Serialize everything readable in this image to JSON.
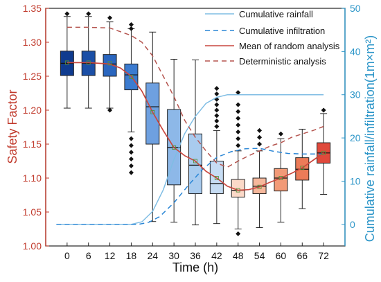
{
  "chart_data": {
    "type": "box",
    "x_label": "Time (h)",
    "y_left_label": "Safety Factor",
    "y_right_label": "Cumulative rainfall/infiltration(1m×m²)",
    "x_ticks": [
      "0",
      "6",
      "12",
      "18",
      "24",
      "30",
      "36",
      "42",
      "48",
      "54",
      "60",
      "66",
      "72"
    ],
    "y_left_ticks": [
      "1.00",
      "1.05",
      "1.10",
      "1.15",
      "1.20",
      "1.25",
      "1.30",
      "1.35"
    ],
    "y_right_ticks": [
      "0",
      "10",
      "20",
      "30",
      "40",
      "50"
    ],
    "y_left_range": [
      1.0,
      1.35
    ],
    "y_right_range": [
      -5,
      50
    ],
    "legend": {
      "rainfall": "Cumulative rainfall",
      "infiltration": "Cumulative infiltration",
      "mean": "Mean of random analysis",
      "deterministic": "Deterministic analysis"
    },
    "colors": {
      "left_axis": "#c0392b",
      "right_axis": "#2b95c8",
      "mean_line": "#c9473e",
      "deterministic_line": "#b5554f",
      "rainfall_line": "#7fbde4",
      "infiltration_line": "#2a86d6"
    },
    "boxes": [
      {
        "x": 0,
        "whisker_low": 1.203,
        "q1": 1.251,
        "median": 1.269,
        "q3": 1.287,
        "whisker_high": 1.338,
        "mean": 1.27,
        "outliers": [
          1.342
        ],
        "color": "#0f3b8f"
      },
      {
        "x": 6,
        "whisker_low": 1.203,
        "q1": 1.251,
        "median": 1.269,
        "q3": 1.287,
        "whisker_high": 1.338,
        "mean": 1.27,
        "outliers": [
          1.342
        ],
        "color": "#1b4fa6"
      },
      {
        "x": 12,
        "whisker_low": 1.203,
        "q1": 1.25,
        "median": 1.268,
        "q3": 1.282,
        "whisker_high": 1.33,
        "mean": 1.269,
        "outliers": [
          1.2,
          1.336
        ],
        "color": "#2a66bf"
      },
      {
        "x": 18,
        "whisker_low": 1.168,
        "q1": 1.23,
        "median": 1.252,
        "q3": 1.268,
        "whisker_high": 1.32,
        "mean": 1.249,
        "outliers": [
          1.108,
          1.118,
          1.128,
          1.138,
          1.148,
          1.158,
          1.326,
          1.32
        ],
        "color": "#3b7bd0"
      },
      {
        "x": 24,
        "whisker_low": 1.036,
        "q1": 1.15,
        "median": 1.205,
        "q3": 1.24,
        "whisker_high": 1.315,
        "mean": 1.197,
        "outliers": [],
        "color": "#6ea0e0"
      },
      {
        "x": 30,
        "whisker_low": 1.035,
        "q1": 1.09,
        "median": 1.145,
        "q3": 1.201,
        "whisker_high": 1.275,
        "mean": 1.145,
        "outliers": [],
        "color": "#8db8e8"
      },
      {
        "x": 36,
        "whisker_low": 1.031,
        "q1": 1.077,
        "median": 1.119,
        "q3": 1.165,
        "whisker_high": 1.274,
        "mean": 1.125,
        "outliers": [],
        "color": "#a9cbee"
      },
      {
        "x": 42,
        "whisker_low": 1.033,
        "q1": 1.077,
        "median": 1.092,
        "q3": 1.125,
        "whisker_high": 1.17,
        "mean": 1.1,
        "outliers": [
          1.176,
          1.184,
          1.192,
          1.2,
          1.208,
          1.216,
          1.224,
          1.232
        ],
        "color": "#c6dcf3"
      },
      {
        "x": 48,
        "whisker_low": 1.025,
        "q1": 1.072,
        "median": 1.082,
        "q3": 1.098,
        "whisker_high": 1.14,
        "mean": 1.082,
        "outliers": [
          1.018,
          1.148,
          1.158,
          1.168,
          1.178,
          1.188,
          1.198,
          1.208,
          1.226
        ],
        "color": "#fbd9c8"
      },
      {
        "x": 54,
        "whisker_low": 1.027,
        "q1": 1.077,
        "median": 1.088,
        "q3": 1.1,
        "whisker_high": 1.14,
        "mean": 1.087,
        "outliers": [
          1.15,
          1.16,
          1.17
        ],
        "color": "#f6b89c"
      },
      {
        "x": 60,
        "whisker_low": 1.035,
        "q1": 1.081,
        "median": 1.1,
        "q3": 1.114,
        "whisker_high": 1.158,
        "mean": 1.1,
        "outliers": [
          1.165
        ],
        "color": "#f29a77"
      },
      {
        "x": 66,
        "whisker_low": 1.055,
        "q1": 1.097,
        "median": 1.113,
        "q3": 1.13,
        "whisker_high": 1.172,
        "mean": 1.115,
        "outliers": [],
        "color": "#ec7b58"
      },
      {
        "x": 72,
        "whisker_low": 1.076,
        "q1": 1.122,
        "median": 1.137,
        "q3": 1.152,
        "whisker_high": 1.195,
        "mean": 1.137,
        "outliers": [
          1.2
        ],
        "color": "#e0493b"
      }
    ],
    "deterministic_sf": [
      [
        0,
        1.322
      ],
      [
        6,
        1.322
      ],
      [
        12,
        1.321
      ],
      [
        18,
        1.31
      ],
      [
        21,
        1.3
      ],
      [
        24,
        1.28
      ],
      [
        27,
        1.25
      ],
      [
        30,
        1.22
      ],
      [
        33,
        1.185
      ],
      [
        36,
        1.16
      ],
      [
        39,
        1.14
      ],
      [
        42,
        1.122
      ],
      [
        45,
        1.116
      ],
      [
        48,
        1.125
      ],
      [
        51,
        1.133
      ],
      [
        54,
        1.14
      ],
      [
        57,
        1.147
      ],
      [
        60,
        1.152
      ],
      [
        63,
        1.16
      ],
      [
        66,
        1.165
      ],
      [
        69,
        1.17
      ],
      [
        72,
        1.176
      ]
    ],
    "mean_sf": [
      [
        0,
        1.27
      ],
      [
        6,
        1.27
      ],
      [
        12,
        1.268
      ],
      [
        15,
        1.262
      ],
      [
        18,
        1.25
      ],
      [
        21,
        1.228
      ],
      [
        24,
        1.197
      ],
      [
        27,
        1.17
      ],
      [
        30,
        1.145
      ],
      [
        33,
        1.133
      ],
      [
        36,
        1.125
      ],
      [
        39,
        1.11
      ],
      [
        42,
        1.1
      ],
      [
        45,
        1.088
      ],
      [
        48,
        1.082
      ],
      [
        51,
        1.083
      ],
      [
        54,
        1.087
      ],
      [
        57,
        1.094
      ],
      [
        60,
        1.1
      ],
      [
        63,
        1.107
      ],
      [
        66,
        1.115
      ],
      [
        69,
        1.126
      ],
      [
        72,
        1.137
      ]
    ],
    "cumulative_rainfall": [
      [
        -3,
        0
      ],
      [
        18,
        0
      ],
      [
        21,
        0.6
      ],
      [
        24,
        3
      ],
      [
        27,
        8
      ],
      [
        30,
        15
      ],
      [
        33,
        21
      ],
      [
        36,
        25
      ],
      [
        39,
        28
      ],
      [
        42,
        29.4
      ],
      [
        45,
        30
      ],
      [
        72,
        30
      ]
    ],
    "cumulative_infiltration": [
      [
        -3,
        0
      ],
      [
        20,
        0
      ],
      [
        23,
        0.5
      ],
      [
        26,
        1.8
      ],
      [
        30,
        5
      ],
      [
        34,
        9
      ],
      [
        38,
        12.7
      ],
      [
        42,
        15.5
      ],
      [
        46,
        16.8
      ],
      [
        50,
        17.5
      ],
      [
        54,
        17.6
      ],
      [
        58,
        16.9
      ],
      [
        62,
        16.4
      ],
      [
        66,
        16.3
      ],
      [
        72,
        16.3
      ]
    ]
  }
}
